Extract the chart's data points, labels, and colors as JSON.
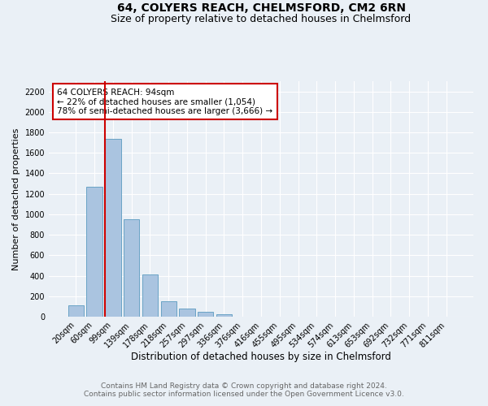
{
  "title": "64, COLYERS REACH, CHELMSFORD, CM2 6RN",
  "subtitle": "Size of property relative to detached houses in Chelmsford",
  "xlabel": "Distribution of detached houses by size in Chelmsford",
  "ylabel": "Number of detached properties",
  "categories": [
    "20sqm",
    "60sqm",
    "99sqm",
    "139sqm",
    "178sqm",
    "218sqm",
    "257sqm",
    "297sqm",
    "336sqm",
    "376sqm",
    "416sqm",
    "455sqm",
    "495sqm",
    "534sqm",
    "574sqm",
    "613sqm",
    "653sqm",
    "692sqm",
    "732sqm",
    "771sqm",
    "811sqm"
  ],
  "values": [
    110,
    1270,
    1740,
    950,
    415,
    150,
    80,
    45,
    22,
    0,
    0,
    0,
    0,
    0,
    0,
    0,
    0,
    0,
    0,
    0,
    0
  ],
  "bar_color": "#aac4e0",
  "bar_edge_color": "#5a9abf",
  "property_line_color": "#cc0000",
  "annotation_text": "64 COLYERS REACH: 94sqm\n← 22% of detached houses are smaller (1,054)\n78% of semi-detached houses are larger (3,666) →",
  "annotation_box_color": "#ffffff",
  "annotation_box_edge_color": "#cc0000",
  "ylim": [
    0,
    2300
  ],
  "yticks": [
    0,
    200,
    400,
    600,
    800,
    1000,
    1200,
    1400,
    1600,
    1800,
    2000,
    2200
  ],
  "background_color": "#eaf0f6",
  "grid_color": "#ffffff",
  "footer_text": "Contains HM Land Registry data © Crown copyright and database right 2024.\nContains public sector information licensed under the Open Government Licence v3.0.",
  "title_fontsize": 10,
  "subtitle_fontsize": 9,
  "xlabel_fontsize": 8.5,
  "ylabel_fontsize": 8,
  "tick_fontsize": 7,
  "annotation_fontsize": 7.5,
  "footer_fontsize": 6.5
}
